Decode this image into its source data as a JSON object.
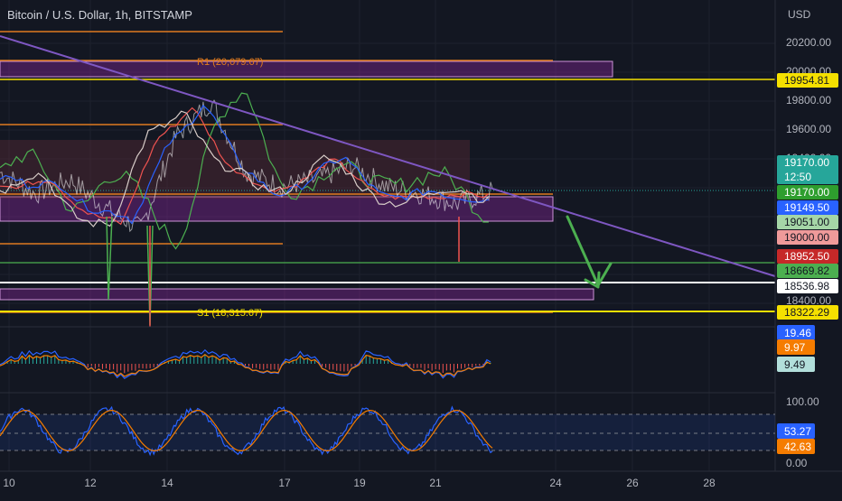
{
  "header": {
    "title": "Bitcoin / U.S. Dollar, 1h, BITSTAMP",
    "currency": "USD"
  },
  "chart_data": {
    "type": "line",
    "title": "Bitcoin / U.S. Dollar, 1h, BITSTAMP",
    "y_unit": "USD",
    "x_ticks": [
      "10",
      "12",
      "14",
      "17",
      "19",
      "21",
      "24",
      "26",
      "28"
    ],
    "price_axis_ticks": [
      "20200.00",
      "20000.00",
      "19800.00",
      "19600.00",
      "19400.00",
      "18400.00"
    ],
    "osc_axis_ticks": [
      "100.00",
      "0.00"
    ],
    "levels": [
      {
        "label": "R1 (20,079.67)",
        "value": 20079.67,
        "color": "#e07a1f"
      },
      {
        "label": "S1 (18,315.67)",
        "value": 18315.67,
        "color": "#f5e000"
      }
    ],
    "horizontal_lines": [
      {
        "value": 19954.81,
        "color": "#f5e000"
      },
      {
        "value": 18669.82,
        "color": "#4caf50"
      },
      {
        "value": 18536.98,
        "color": "#ffffff"
      },
      {
        "value": 18322.29,
        "color": "#f5e000"
      }
    ],
    "price_tags": [
      {
        "text": "19954.81",
        "bg": "#f5e000",
        "fg": "#131722",
        "value": 19954.81
      },
      {
        "text": "19170.00",
        "bg": "#26a69a",
        "fg": "#ffffff",
        "value": 19170.0,
        "sub": "12:50"
      },
      {
        "text": "19170.00",
        "bg": "#2e9e2e",
        "fg": "#ffffff",
        "value": 19170.0
      },
      {
        "text": "19149.50",
        "bg": "#2962ff",
        "fg": "#ffffff",
        "value": 19149.5
      },
      {
        "text": "19051.00",
        "bg": "#a5d6a7",
        "fg": "#131722",
        "value": 19051.0
      },
      {
        "text": "19000.00",
        "bg": "#ef9a9a",
        "fg": "#131722",
        "value": 19000.0
      },
      {
        "text": "18952.50",
        "bg": "#c62828",
        "fg": "#ffffff",
        "value": 18952.5
      },
      {
        "text": "18669.82",
        "bg": "#4caf50",
        "fg": "#131722",
        "value": 18669.82
      },
      {
        "text": "18536.98",
        "bg": "#ffffff",
        "fg": "#131722",
        "value": 18536.98
      },
      {
        "text": "18322.29",
        "bg": "#f5e000",
        "fg": "#131722",
        "value": 18322.29
      }
    ],
    "indicator_tags": [
      {
        "text": "19.46",
        "bg": "#2962ff",
        "fg": "#ffffff"
      },
      {
        "text": "9.97",
        "bg": "#f57c00",
        "fg": "#ffffff"
      },
      {
        "text": "9.49",
        "bg": "#b2dfdb",
        "fg": "#131722"
      }
    ],
    "oscillator_tags": [
      {
        "text": "53.27",
        "bg": "#2962ff",
        "fg": "#ffffff"
      },
      {
        "text": "42.63",
        "bg": "#f57c00",
        "fg": "#ffffff"
      }
    ],
    "close_series": [
      {
        "date": "Sep 9",
        "price": 19300
      },
      {
        "date": "Sep 10",
        "price": 19150
      },
      {
        "date": "Sep 11",
        "price": 19250
      },
      {
        "date": "Sep 12",
        "price": 19050
      },
      {
        "date": "Sep 13",
        "price": 18900
      },
      {
        "date": "Sep 13",
        "price": 19550
      },
      {
        "date": "Sep 14",
        "price": 19800
      },
      {
        "date": "Sep 15",
        "price": 19300
      },
      {
        "date": "Sep 16",
        "price": 19200
      },
      {
        "date": "Sep 17",
        "price": 19250
      },
      {
        "date": "Sep 18",
        "price": 19350
      },
      {
        "date": "Sep 19",
        "price": 19200
      },
      {
        "date": "Sep 20",
        "price": 19150
      },
      {
        "date": "Sep 21",
        "price": 19080
      },
      {
        "date": "Sep 22",
        "price": 19170
      }
    ],
    "projection": {
      "from_date": "Sep 23",
      "from_price": 19070,
      "to_date": "Sep 25",
      "to_price": 18560
    },
    "colors": {
      "background": "#131722",
      "trendline": "#7e57c2",
      "zone": "#9c27b0",
      "projection": "#4caf50"
    }
  }
}
